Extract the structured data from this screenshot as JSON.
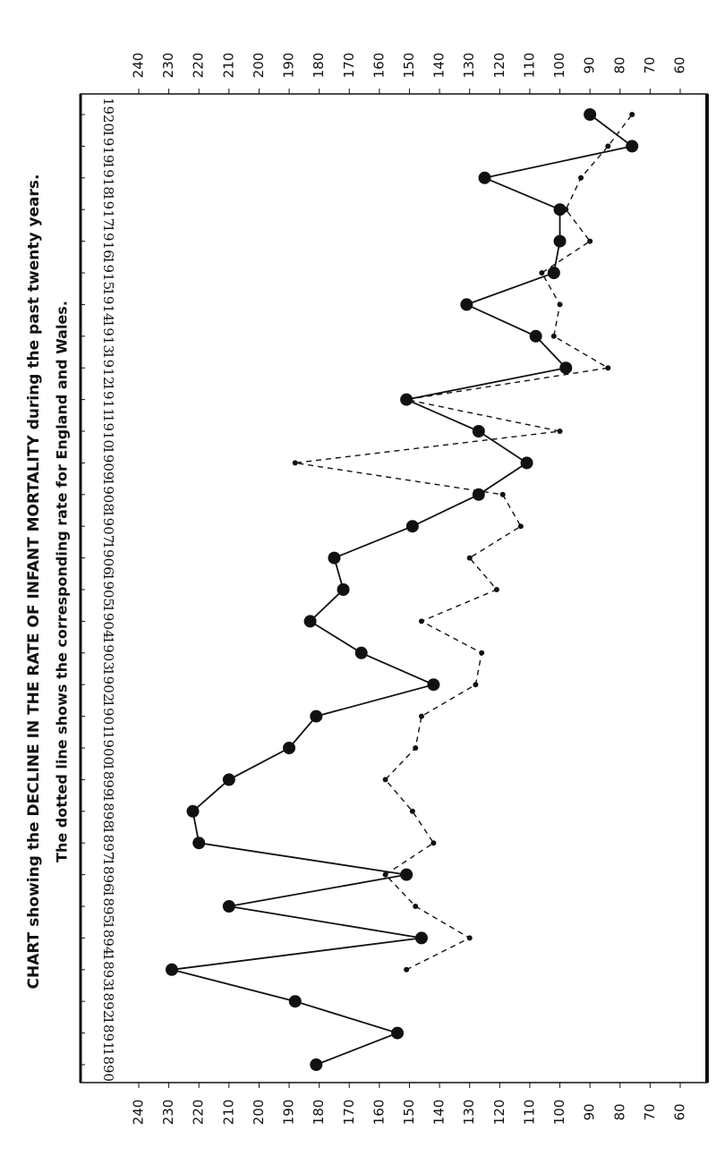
{
  "chart_data": {
    "type": "line",
    "title": "CHART showing the DECLINE IN THE RATE OF INFANT MORTALITY during the past twenty years.",
    "subtitle": "The dotted line shows the corresponding rate for England and Wales.",
    "x": [
      1890,
      1891,
      1892,
      1893,
      1894,
      1895,
      1896,
      1897,
      1898,
      1899,
      1900,
      1901,
      1902,
      1903,
      1904,
      1905,
      1906,
      1907,
      1908,
      1909,
      1910,
      1911,
      1912,
      1913,
      1914,
      1915,
      1916,
      1917,
      1918,
      1919,
      1920
    ],
    "xlim": [
      1890,
      1920
    ],
    "xticks": [
      1890,
      1891,
      1892,
      1893,
      1894,
      1895,
      1896,
      1897,
      1898,
      1899,
      1900,
      1901,
      1902,
      1903,
      1904,
      1905,
      1906,
      1907,
      1908,
      1909,
      1910,
      1911,
      1912,
      1913,
      1914,
      1915,
      1916,
      1917,
      1918,
      1919,
      1920
    ],
    "ylim": [
      60,
      240
    ],
    "yticks": [
      240,
      230,
      220,
      210,
      200,
      190,
      180,
      170,
      160,
      150,
      140,
      130,
      120,
      110,
      100,
      90,
      80,
      70,
      60
    ],
    "series": [
      {
        "color": "#111111",
        "style": "solid",
        "values": [
          181,
          154,
          188,
          229,
          146,
          210,
          151,
          220,
          222,
          210,
          190,
          181,
          142,
          166,
          183,
          172,
          175,
          149,
          127,
          111,
          127,
          151,
          98,
          108,
          131,
          102,
          100,
          100,
          125,
          76,
          90
        ]
      },
      {
        "color": "#111111",
        "style": "dotted",
        "values": [
          null,
          null,
          null,
          151,
          130,
          148,
          158,
          142,
          149,
          158,
          148,
          146,
          128,
          126,
          146,
          121,
          130,
          113,
          119,
          188,
          100,
          151,
          84,
          102,
          100,
          106,
          90,
          98,
          93,
          84,
          76
        ]
      }
    ]
  }
}
